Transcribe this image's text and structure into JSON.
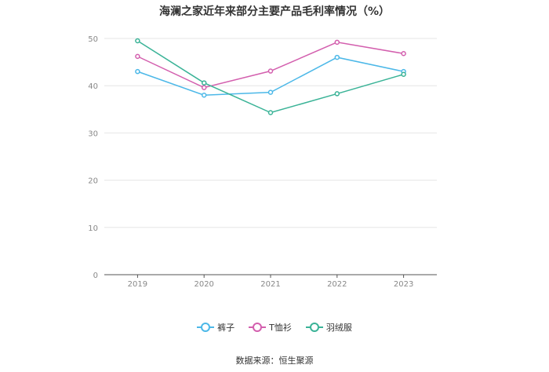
{
  "title": "海澜之家近年来部分主要产品毛利率情况（%）",
  "source_text": "数据来源：恒生聚源",
  "chart_data": {
    "type": "line",
    "title": "海澜之家近年来部分主要产品毛利率情况（%）",
    "categories": [
      "2019",
      "2020",
      "2021",
      "2022",
      "2023"
    ],
    "y_ticks": [
      "0",
      "10",
      "20",
      "30",
      "40",
      "50"
    ],
    "ylim": [
      0,
      50
    ],
    "grid": true,
    "legend_position": "bottom",
    "series": [
      {
        "name": "裤子",
        "color": "#4cb8e8",
        "values": [
          43.0,
          38.0,
          38.6,
          46.0,
          43.0
        ]
      },
      {
        "name": "T恤衫",
        "color": "#d35fae",
        "values": [
          46.2,
          39.6,
          43.1,
          49.2,
          46.8
        ]
      },
      {
        "name": "羽绒服",
        "color": "#3ab397",
        "values": [
          49.5,
          40.6,
          34.3,
          38.3,
          42.4
        ]
      }
    ]
  }
}
